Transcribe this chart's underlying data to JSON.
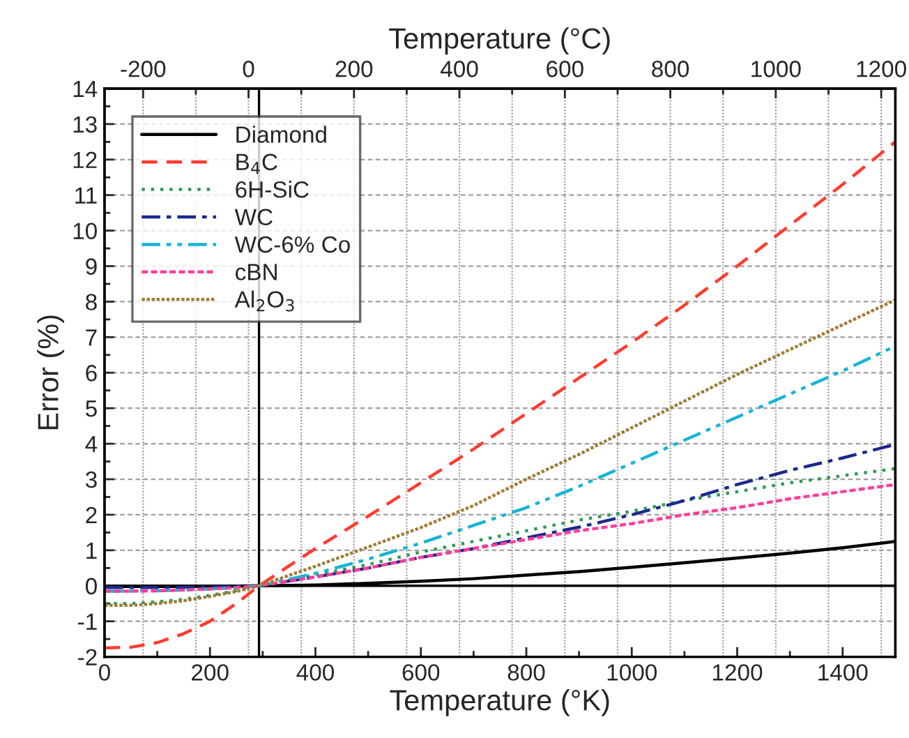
{
  "chart_data": {
    "type": "line",
    "xlabel": "Temperature (°K)",
    "ylabel": "Error (%)",
    "x2label": "Temperature (°C)",
    "x": [
      0,
      50,
      100,
      150,
      200,
      250,
      293,
      400,
      500,
      600,
      700,
      800,
      900,
      1000,
      1100,
      1200,
      1300,
      1400,
      1500
    ],
    "series": [
      {
        "name": "Diamond",
        "color": "#000000",
        "line_style": "solid",
        "values": [
          -0.02,
          -0.02,
          -0.02,
          -0.02,
          -0.01,
          -0.01,
          0,
          0.02,
          0.07,
          0.13,
          0.2,
          0.3,
          0.4,
          0.52,
          0.65,
          0.78,
          0.92,
          1.07,
          1.25
        ]
      },
      {
        "name": "B$_{4}$C",
        "color": "#ff3b30",
        "line_style": "dashed",
        "values": [
          -1.75,
          -1.73,
          -1.6,
          -1.35,
          -1.0,
          -0.5,
          0,
          1.05,
          1.96,
          2.9,
          3.85,
          4.85,
          5.85,
          6.85,
          7.9,
          9.0,
          10.15,
          11.3,
          12.5
        ]
      },
      {
        "name": "6H-SiC",
        "color": "#2e9a55",
        "line_style": "dotted",
        "values": [
          -0.5,
          -0.5,
          -0.45,
          -0.38,
          -0.27,
          -0.14,
          0,
          0.3,
          0.6,
          0.95,
          1.25,
          1.55,
          1.85,
          2.1,
          2.4,
          2.65,
          2.9,
          3.1,
          3.3
        ]
      },
      {
        "name": "WC",
        "color": "#1a2a8c",
        "line_style": "dashdot",
        "values": [
          -0.05,
          -0.05,
          -0.05,
          -0.04,
          -0.03,
          -0.02,
          0,
          0.25,
          0.5,
          0.8,
          1.05,
          1.35,
          1.65,
          2.0,
          2.4,
          2.85,
          3.25,
          3.6,
          3.98
        ]
      },
      {
        "name": "WC-6% Co",
        "color": "#17b4d6",
        "line_style": "dashdotdot",
        "values": [
          -0.15,
          -0.15,
          -0.14,
          -0.12,
          -0.09,
          -0.05,
          0,
          0.35,
          0.75,
          1.2,
          1.7,
          2.2,
          2.8,
          3.45,
          4.1,
          4.75,
          5.4,
          6.05,
          6.75
        ]
      },
      {
        "name": "cBN",
        "color": "#ff3d9a",
        "line_style": "shortdash",
        "values": [
          -0.15,
          -0.15,
          -0.14,
          -0.12,
          -0.09,
          -0.05,
          0,
          0.25,
          0.5,
          0.8,
          1.05,
          1.3,
          1.55,
          1.75,
          2.0,
          2.2,
          2.45,
          2.65,
          2.85
        ]
      },
      {
        "name": "Al$_{2}$O$_{3}$",
        "color": "#a07d35",
        "line_style": "densedot",
        "values": [
          -0.55,
          -0.55,
          -0.5,
          -0.42,
          -0.3,
          -0.16,
          0,
          0.55,
          1.09,
          1.64,
          2.26,
          3.0,
          3.7,
          4.45,
          5.2,
          5.95,
          6.65,
          7.35,
          8.05
        ]
      }
    ],
    "xlim": [
      0,
      1500
    ],
    "xticks": [
      0,
      {
        "value": 100,
        "label": null
      },
      200,
      {
        "value": 300,
        "label": null
      },
      400,
      {
        "value": 500,
        "label": null
      },
      600,
      {
        "value": 700,
        "label": null
      },
      800,
      {
        "value": 900,
        "label": null
      },
      1000,
      {
        "value": 1100,
        "label": null
      },
      1200,
      {
        "value": 1300,
        "label": null
      },
      1400
    ],
    "x2lim": [
      -273.15,
      1226.85
    ],
    "x2ticks": [
      -200,
      {
        "value": -100,
        "label": null
      },
      0,
      {
        "value": 100,
        "label": null
      },
      200,
      {
        "value": 300,
        "label": null
      },
      400,
      {
        "value": 500,
        "label": null
      },
      600,
      {
        "value": 700,
        "label": null
      },
      800,
      {
        "value": 900,
        "label": null
      },
      1000,
      {
        "value": 1100,
        "label": null
      },
      1200
    ],
    "ylim": [
      -2,
      14
    ],
    "yticks": [
      -2,
      {
        "value": -1.5,
        "label": null
      },
      -1,
      {
        "value": -0.5,
        "label": null
      },
      0,
      {
        "value": 0.5,
        "label": null
      },
      1,
      {
        "value": 1.5,
        "label": null
      },
      2,
      {
        "value": 2.5,
        "label": null
      },
      3,
      {
        "value": 3.5,
        "label": null
      },
      4,
      {
        "value": 4.5,
        "label": null
      },
      5,
      {
        "value": 5.5,
        "label": null
      },
      6,
      {
        "value": 6.5,
        "label": null
      },
      7,
      {
        "value": 7.5,
        "label": null
      },
      8,
      {
        "value": 8.5,
        "label": null
      },
      9,
      {
        "value": 9.5,
        "label": null
      },
      10,
      {
        "value": 10.5,
        "label": null
      },
      11,
      {
        "value": 11.5,
        "label": null
      },
      12,
      {
        "value": 12.5,
        "label": null
      },
      13,
      {
        "value": 13.5,
        "label": null
      },
      14
    ],
    "ref_lines": [
      {
        "axis": "x",
        "value": 293,
        "color": "#000000"
      },
      {
        "axis": "y",
        "value": 0,
        "color": "#000000"
      }
    ],
    "grid": true,
    "legend": "top left",
    "marker": "none"
  }
}
